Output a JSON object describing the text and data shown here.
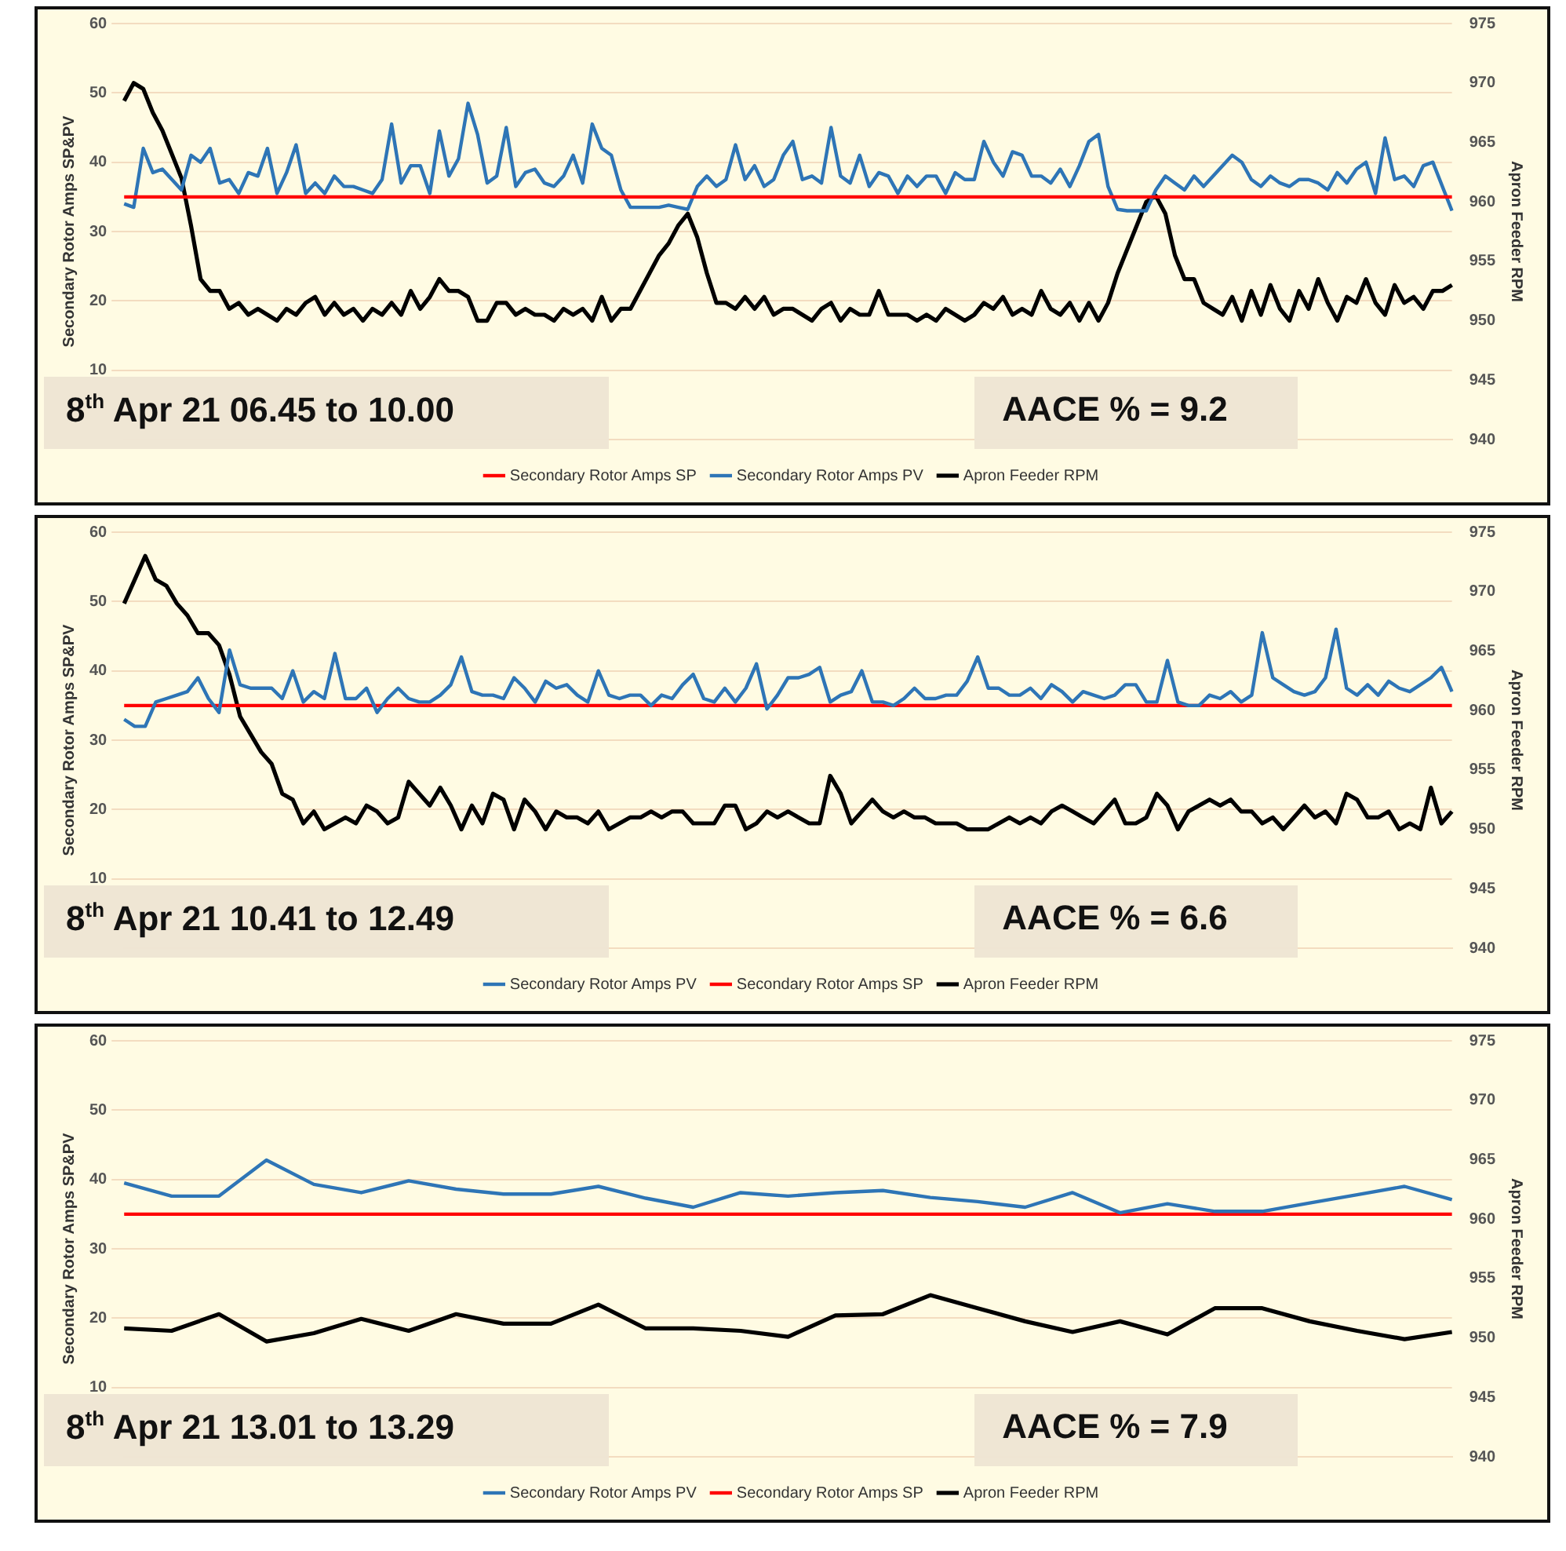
{
  "chart_data": [
    {
      "type": "line",
      "ylabel": "Secondary Rotor Amps SP&PV",
      "y2label": "Apron Feeder RPM",
      "annotations": [
        "8$^{th}$ Apr 21 06.45 to 10.00",
        "AACE % = 9.2"
      ],
      "categories": [
        null,
        null,
        null,
        null,
        null,
        null,
        null,
        null,
        null,
        null,
        null,
        null,
        null,
        null,
        null,
        null,
        null,
        null,
        null,
        null,
        null,
        null,
        null,
        null,
        null,
        null,
        null,
        null,
        null,
        null,
        null,
        null,
        null,
        null,
        null,
        null,
        null,
        null,
        null,
        null,
        null,
        null,
        null,
        null,
        null,
        null,
        null,
        null,
        null,
        null,
        null,
        null,
        null,
        null,
        null,
        null,
        null,
        null,
        null,
        null,
        null,
        null,
        null,
        null,
        null,
        null,
        null,
        null,
        null,
        null,
        null,
        null,
        null,
        null,
        null,
        null,
        null,
        null,
        null,
        null,
        null,
        null,
        null,
        null,
        null,
        null,
        null,
        null,
        null,
        null,
        null,
        null,
        null,
        null,
        null,
        null,
        null,
        null,
        null,
        null,
        null,
        null,
        null,
        null,
        null,
        null,
        null,
        null,
        null,
        null,
        null,
        null,
        null,
        null,
        null,
        null,
        null,
        null,
        null,
        null,
        null,
        null,
        null,
        null,
        null,
        null,
        null,
        null,
        null,
        null,
        null,
        null,
        null,
        null,
        null,
        null,
        null,
        null,
        null,
        null
      ],
      "series": [
        {
          "name": "Secondary Rotor Amps SP",
          "color": "#ff0000",
          "axis": "y",
          "values": [
            35,
            35,
            35,
            35,
            35,
            35,
            35,
            35,
            35,
            35,
            35,
            35,
            35,
            35,
            35,
            35,
            35,
            35,
            35,
            35,
            35,
            35,
            35,
            35,
            35,
            35,
            35,
            35,
            35,
            35,
            35,
            35,
            35,
            35,
            35,
            35,
            35,
            35,
            35,
            35,
            35,
            35,
            35,
            35,
            35,
            35,
            35,
            35,
            35,
            35,
            35,
            35,
            35,
            35,
            35,
            35,
            35,
            35,
            35,
            35,
            35,
            35,
            35,
            35,
            35,
            35,
            35,
            35,
            35,
            35,
            35,
            35,
            35,
            35,
            35,
            35,
            35,
            35,
            35,
            35,
            35,
            35,
            35,
            35,
            35,
            35,
            35,
            35,
            35,
            35,
            35,
            35,
            35,
            35,
            35,
            35,
            35,
            35,
            35,
            35,
            35,
            35,
            35,
            35,
            35,
            35,
            35,
            35,
            35,
            35,
            35,
            35,
            35,
            35,
            35,
            35,
            35,
            35,
            35,
            35,
            35,
            35,
            35,
            35,
            35,
            35,
            35,
            35,
            35,
            35,
            35,
            35,
            35,
            35,
            35,
            35,
            35,
            35,
            35,
            35
          ]
        },
        {
          "name": "Secondary Rotor Amps PV",
          "color": "#2e75b6",
          "axis": "y",
          "values": [
            34,
            33.5,
            42,
            38.5,
            39,
            37.5,
            36,
            41,
            40,
            42,
            37,
            37.5,
            35.5,
            38.5,
            38,
            42,
            35.5,
            38.5,
            42.5,
            35.5,
            37,
            35.5,
            38,
            36.5,
            36.5,
            36,
            35.5,
            37.5,
            45.5,
            37,
            39.5,
            39.5,
            35.5,
            44.5,
            38,
            40.5,
            48.5,
            44,
            37,
            38,
            45,
            36.5,
            38.5,
            39,
            37,
            36.5,
            38,
            41,
            37,
            45.5,
            42,
            41,
            36,
            33.5,
            33.5,
            33.5,
            33.5,
            33.8,
            33.5,
            33.2,
            36.5,
            38,
            36.5,
            37.5,
            42.5,
            37.5,
            39.5,
            36.5,
            37.5,
            41,
            43,
            37.5,
            38,
            37,
            45,
            38,
            37,
            41,
            36.5,
            38.5,
            38,
            35.5,
            38,
            36.5,
            38,
            38,
            35.5,
            38.5,
            37.5,
            37.5,
            43,
            40,
            38,
            41.5,
            41,
            38,
            38,
            37,
            39,
            36.5,
            39.5,
            43,
            44,
            36.5,
            33.2,
            33,
            33,
            33,
            36,
            38,
            37,
            36,
            38,
            36.5,
            38,
            39.5,
            41,
            40,
            37.5,
            36.5,
            38,
            37,
            36.5,
            37.5,
            37.5,
            37,
            36,
            38.5,
            37,
            39,
            40,
            35.5,
            43.5,
            37.5,
            38,
            36.5,
            39.5,
            40,
            36.5,
            33
          ]
        },
        {
          "name": "Apron Feeder RPM",
          "color": "#000000",
          "axis": "y2",
          "values": [
            968.5,
            970,
            969.5,
            967.5,
            966,
            964,
            962,
            958,
            953.5,
            952.5,
            952.5,
            951,
            951.5,
            950.5,
            951,
            950.5,
            950,
            951,
            950.5,
            951.5,
            952,
            950.5,
            951.5,
            950.5,
            951,
            950,
            951,
            950.5,
            951.5,
            950.5,
            952.5,
            951,
            952,
            953.5,
            952.5,
            952.5,
            952,
            950,
            950,
            951.5,
            951.5,
            950.5,
            951,
            950.5,
            950.5,
            950,
            951,
            950.5,
            951,
            950,
            952,
            950,
            951,
            951,
            952.5,
            954,
            955.5,
            956.5,
            958,
            959,
            957,
            954,
            951.5,
            951.5,
            951,
            952,
            951,
            952,
            950.5,
            951,
            951,
            950.5,
            950,
            951,
            951.5,
            950,
            951,
            950.5,
            950.5,
            952.5,
            950.5,
            950.5,
            950.5,
            950,
            950.5,
            950,
            951,
            950.5,
            950,
            950.5,
            951.5,
            951,
            952,
            950.5,
            951,
            950.5,
            952.5,
            951,
            950.5,
            951.5,
            950,
            951.5,
            950,
            951.5,
            954,
            956,
            958,
            960,
            960.5,
            959,
            955.5,
            953.5,
            953.5,
            951.5,
            951,
            950.5,
            952,
            950,
            952.5,
            950.5,
            953,
            951,
            950,
            952.5,
            951,
            953.5,
            951.5,
            950,
            952,
            951.5,
            953.5,
            951.5,
            950.5,
            953,
            951.5,
            952,
            951,
            952.5,
            952.5,
            953
          ]
        }
      ],
      "ylim": [
        0,
        60
      ],
      "yticks": [
        10,
        20,
        30,
        40,
        50,
        60
      ],
      "y2lim": [
        940,
        975
      ],
      "y2ticks": [
        940,
        945,
        950,
        955,
        960,
        965,
        970,
        975
      ],
      "grid": "y",
      "legend": "bottom",
      "tick_labels": "y",
      "marker": "none"
    },
    {
      "type": "line",
      "ylabel": "Secondary Rotor Amps SP&PV",
      "y2label": "Apron Feeder RPM",
      "annotations": [
        "8$^{th}$ Apr 21 10.41 to 12.49",
        "AACE % = 6.6"
      ],
      "categories": [
        null,
        null,
        null,
        null,
        null,
        null,
        null,
        null,
        null,
        null,
        null,
        null,
        null,
        null,
        null,
        null,
        null,
        null,
        null,
        null,
        null,
        null,
        null,
        null,
        null,
        null,
        null,
        null,
        null,
        null,
        null,
        null,
        null,
        null,
        null,
        null,
        null,
        null,
        null,
        null,
        null,
        null,
        null,
        null,
        null,
        null,
        null,
        null,
        null,
        null,
        null,
        null,
        null,
        null,
        null,
        null,
        null,
        null,
        null,
        null,
        null,
        null,
        null,
        null,
        null,
        null,
        null,
        null,
        null,
        null,
        null,
        null,
        null,
        null,
        null,
        null,
        null,
        null,
        null,
        null,
        null,
        null,
        null,
        null,
        null,
        null,
        null,
        null,
        null,
        null,
        null,
        null,
        null,
        null,
        null,
        null,
        null,
        null,
        null,
        null,
        null,
        null,
        null,
        null,
        null,
        null,
        null,
        null,
        null,
        null,
        null,
        null,
        null,
        null,
        null,
        null,
        null,
        null,
        null,
        null,
        null,
        null,
        null,
        null,
        null,
        null,
        null
      ],
      "series": [
        {
          "name": "Secondary Rotor Amps PV",
          "color": "#2e75b6",
          "axis": "y",
          "values": [
            33,
            32,
            32,
            35.5,
            36,
            36.5,
            37,
            39,
            36,
            34,
            43,
            38,
            37.5,
            37.5,
            37.5,
            36,
            40,
            35.5,
            37,
            36,
            42.5,
            36,
            36,
            37.5,
            34,
            36,
            37.5,
            36,
            35.5,
            35.5,
            36.5,
            38,
            42,
            37,
            36.5,
            36.5,
            36,
            39,
            37.5,
            35.5,
            38.5,
            37.5,
            38,
            36.5,
            35.5,
            40,
            36.5,
            36,
            36.5,
            36.5,
            35,
            36.5,
            36,
            38,
            39.5,
            36,
            35.5,
            37.5,
            35.5,
            37.5,
            41,
            34.5,
            36.5,
            39,
            39,
            39.5,
            40.5,
            35.5,
            36.5,
            37,
            40,
            35.5,
            35.5,
            35,
            36,
            37.5,
            36,
            36,
            36.5,
            36.5,
            38.5,
            42,
            37.5,
            37.5,
            36.5,
            36.5,
            37.5,
            36,
            38,
            37,
            35.5,
            37,
            36.5,
            36,
            36.5,
            38,
            38,
            35.5,
            35.5,
            41.5,
            35.5,
            35,
            35,
            36.5,
            36,
            37,
            35.5,
            36.5,
            45.5,
            39,
            38,
            37,
            36.5,
            37,
            39,
            46,
            37.5,
            36.5,
            38,
            36.5,
            38.5,
            37.5,
            37,
            38,
            39,
            40.5,
            37
          ]
        },
        {
          "name": "Secondary Rotor Amps SP",
          "color": "#ff0000",
          "axis": "y",
          "values": [
            35,
            35,
            35,
            35,
            35,
            35,
            35,
            35,
            35,
            35,
            35,
            35,
            35,
            35,
            35,
            35,
            35,
            35,
            35,
            35,
            35,
            35,
            35,
            35,
            35,
            35,
            35,
            35,
            35,
            35,
            35,
            35,
            35,
            35,
            35,
            35,
            35,
            35,
            35,
            35,
            35,
            35,
            35,
            35,
            35,
            35,
            35,
            35,
            35,
            35,
            35,
            35,
            35,
            35,
            35,
            35,
            35,
            35,
            35,
            35,
            35,
            35,
            35,
            35,
            35,
            35,
            35,
            35,
            35,
            35,
            35,
            35,
            35,
            35,
            35,
            35,
            35,
            35,
            35,
            35,
            35,
            35,
            35,
            35,
            35,
            35,
            35,
            35,
            35,
            35,
            35,
            35,
            35,
            35,
            35,
            35,
            35,
            35,
            35,
            35,
            35,
            35,
            35,
            35,
            35,
            35,
            35,
            35,
            35,
            35,
            35,
            35,
            35,
            35,
            35,
            35,
            35,
            35,
            35,
            35,
            35,
            35,
            35,
            35,
            35,
            35,
            35
          ]
        },
        {
          "name": "Apron Feeder RPM",
          "color": "#000000",
          "axis": "y2",
          "values": [
            969,
            971,
            973,
            971,
            970.5,
            969,
            968,
            966.5,
            966.5,
            965.5,
            963,
            959.5,
            958,
            956.5,
            955.5,
            953,
            952.5,
            950.5,
            951.5,
            950,
            950.5,
            951,
            950.5,
            952,
            951.5,
            950.5,
            951,
            954,
            953,
            952,
            953.5,
            952,
            950,
            952,
            950.5,
            953,
            952.5,
            950,
            952.5,
            951.5,
            950,
            951.5,
            951,
            951,
            950.5,
            951.5,
            950,
            950.5,
            951,
            951,
            951.5,
            951,
            951.5,
            951.5,
            950.5,
            950.5,
            950.5,
            952,
            952,
            950,
            950.5,
            951.5,
            951,
            951.5,
            951,
            950.5,
            950.5,
            954.5,
            953,
            950.5,
            951.5,
            952.5,
            951.5,
            951,
            951.5,
            951,
            951,
            950.5,
            950.5,
            950.5,
            950,
            950,
            950,
            950.5,
            951,
            950.5,
            951,
            950.5,
            951.5,
            952,
            951.5,
            951,
            950.5,
            951.5,
            952.5,
            950.5,
            950.5,
            951,
            953,
            952,
            950,
            951.5,
            952,
            952.5,
            952,
            952.5,
            951.5,
            951.5,
            950.5,
            951,
            950,
            951,
            952,
            951,
            951.5,
            950.5,
            953,
            952.5,
            951,
            951,
            951.5,
            950,
            950.5,
            950,
            953.5,
            950.5,
            951.5
          ]
        }
      ],
      "ylim": [
        0,
        60
      ],
      "yticks": [
        10,
        20,
        30,
        40,
        50,
        60
      ],
      "y2lim": [
        940,
        975
      ],
      "y2ticks": [
        940,
        945,
        950,
        955,
        960,
        965,
        970,
        975
      ],
      "grid": "y",
      "legend": "bottom",
      "tick_labels": "y",
      "marker": "none"
    },
    {
      "type": "line",
      "ylabel": "Secondary Rotor Amps SP&PV",
      "y2label": "Apron Feeder RPM",
      "annotations": [
        "8$^{th}$ Apr 21 13.01 to 13.29",
        "AACE % = 7.9"
      ],
      "categories": [
        null,
        null,
        null,
        null,
        null,
        null,
        null,
        null,
        null,
        null,
        null,
        null,
        null,
        null,
        null,
        null,
        null,
        null,
        null,
        null,
        null,
        null,
        null,
        null,
        null,
        null,
        null,
        null,
        null
      ],
      "series": [
        {
          "name": "Secondary Rotor Amps PV",
          "color": "#2e75b6",
          "axis": "y",
          "values": [
            39.5,
            37.6,
            37.6,
            42.8,
            39.3,
            38.1,
            39.8,
            38.6,
            37.9,
            37.9,
            39,
            37.3,
            36,
            38.1,
            37.6,
            38.1,
            38.4,
            37.4,
            36.8,
            36,
            38.1,
            35.2,
            36.5,
            35.4,
            35.4,
            36.6,
            37.8,
            39,
            37.1
          ]
        },
        {
          "name": "Secondary Rotor Amps SP",
          "color": "#ff0000",
          "axis": "y",
          "values": [
            35,
            35,
            35,
            35,
            35,
            35,
            35,
            35,
            35,
            35,
            35,
            35,
            35,
            35,
            35,
            35,
            35,
            35,
            35,
            35,
            35,
            35,
            35,
            35,
            35,
            35,
            35,
            35,
            35
          ]
        },
        {
          "name": "Apron Feeder RPM",
          "color": "#000000",
          "axis": "y2",
          "values": [
            950.8,
            950.6,
            952,
            949.7,
            950.4,
            951.6,
            950.6,
            952,
            951.2,
            951.2,
            952.8,
            950.8,
            950.8,
            950.6,
            950.1,
            951.9,
            952,
            953.6,
            952.5,
            951.4,
            950.5,
            951.4,
            950.3,
            952.5,
            952.5,
            951.4,
            950.6,
            949.9,
            950.5
          ]
        }
      ],
      "ylim": [
        0,
        60
      ],
      "yticks": [
        10,
        20,
        30,
        40,
        50,
        60
      ],
      "y2lim": [
        940,
        975
      ],
      "y2ticks": [
        940,
        945,
        950,
        955,
        960,
        965,
        970,
        975
      ],
      "grid": "y",
      "legend": "bottom",
      "tick_labels": "y",
      "marker": "none"
    }
  ]
}
